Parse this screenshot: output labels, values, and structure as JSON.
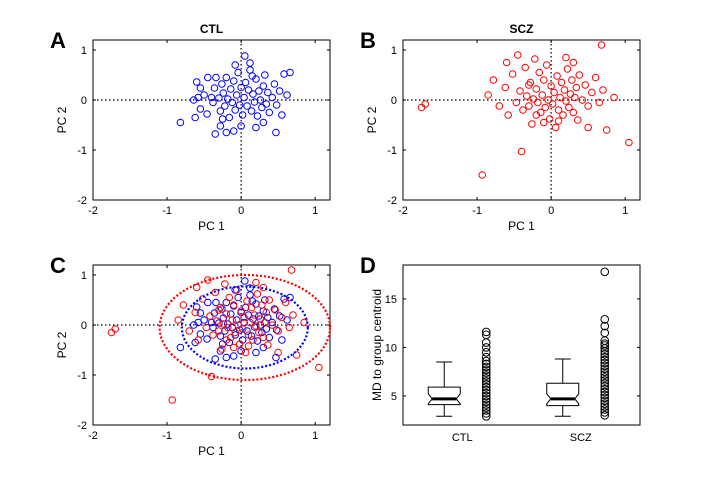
{
  "chart_data": [
    {
      "type": "scatter",
      "panel_letter": "A",
      "title": "CTL",
      "xlabel": "PC 1",
      "ylabel": "PC 2",
      "xlim": [
        -2,
        1.2
      ],
      "ylim": [
        -2,
        1.2
      ],
      "xticks": [
        "-2",
        "-1",
        "0",
        "1"
      ],
      "yticks": [
        "-2",
        "-1",
        "0",
        "1"
      ],
      "crosshair": "dotted lines at x=0 and y=0",
      "series": [
        {
          "color": "#0000ff",
          "marker": "open circle",
          "points": [
            [
              -0.82,
              -0.45
            ],
            [
              -0.62,
              -0.35
            ],
            [
              -0.55,
              -0.18
            ],
            [
              -0.5,
              0.1
            ],
            [
              -0.46,
              -0.28
            ],
            [
              -0.4,
              0.05
            ],
            [
              -0.38,
              -0.05
            ],
            [
              -0.36,
              0.24
            ],
            [
              -0.34,
              0.45
            ],
            [
              -0.3,
              0.04
            ],
            [
              -0.28,
              -0.22
            ],
            [
              -0.26,
              0.32
            ],
            [
              -0.24,
              0.14
            ],
            [
              -0.22,
              -0.12
            ],
            [
              -0.2,
              0.45
            ],
            [
              -0.18,
              0.02
            ],
            [
              -0.16,
              -0.35
            ],
            [
              -0.14,
              0.22
            ],
            [
              -0.12,
              -0.05
            ],
            [
              -0.1,
              0.38
            ],
            [
              -0.08,
              -0.2
            ],
            [
              -0.06,
              0.1
            ],
            [
              -0.04,
              0.55
            ],
            [
              -0.02,
              -0.1
            ],
            [
              0.0,
              0.25
            ],
            [
              0.02,
              -0.3
            ],
            [
              0.04,
              0.05
            ],
            [
              0.06,
              0.35
            ],
            [
              0.08,
              -0.12
            ],
            [
              0.1,
              0.2
            ],
            [
              0.12,
              0.6
            ],
            [
              0.14,
              -0.22
            ],
            [
              0.16,
              0.12
            ],
            [
              0.18,
              -0.04
            ],
            [
              0.2,
              0.42
            ],
            [
              0.22,
              -0.32
            ],
            [
              0.24,
              0.18
            ],
            [
              0.26,
              0.0
            ],
            [
              0.28,
              -0.15
            ],
            [
              0.3,
              0.28
            ],
            [
              0.32,
              0.5
            ],
            [
              0.34,
              -0.08
            ],
            [
              0.36,
              0.15
            ],
            [
              0.38,
              -0.25
            ],
            [
              0.42,
              0.05
            ],
            [
              0.45,
              0.32
            ],
            [
              0.48,
              -0.1
            ],
            [
              0.52,
              0.18
            ],
            [
              0.58,
              0.52
            ],
            [
              0.62,
              0.1
            ],
            [
              0.66,
              0.55
            ],
            [
              0.05,
              0.88
            ],
            [
              0.12,
              0.74
            ],
            [
              -0.08,
              0.7
            ],
            [
              -0.2,
              -0.65
            ],
            [
              0.0,
              -0.52
            ],
            [
              -0.1,
              -0.62
            ],
            [
              -0.35,
              -0.68
            ],
            [
              -0.28,
              -0.52
            ],
            [
              0.2,
              -0.55
            ],
            [
              0.3,
              -0.45
            ],
            [
              0.47,
              -0.65
            ],
            [
              0.55,
              -0.3
            ],
            [
              -0.58,
              0.05
            ],
            [
              -0.55,
              0.24
            ],
            [
              -0.64,
              0.0
            ],
            [
              -0.6,
              0.36
            ],
            [
              -0.45,
              0.45
            ],
            [
              -0.25,
              -0.38
            ],
            [
              0.15,
              0.48
            ]
          ]
        }
      ]
    },
    {
      "type": "scatter",
      "panel_letter": "B",
      "title": "SCZ",
      "xlabel": "PC 1",
      "ylabel": "PC 2",
      "xlim": [
        -2,
        1.2
      ],
      "ylim": [
        -2,
        1.2
      ],
      "xticks": [
        "-2",
        "-1",
        "0",
        "1"
      ],
      "yticks": [
        "-2",
        "-1",
        "0",
        "1"
      ],
      "crosshair": "dotted lines at x=0 and y=0",
      "series": [
        {
          "color": "#ff0000",
          "marker": "open circle",
          "points": [
            [
              -1.75,
              -0.15
            ],
            [
              -1.7,
              -0.08
            ],
            [
              -0.93,
              -1.5
            ],
            [
              -0.85,
              0.1
            ],
            [
              -0.78,
              0.4
            ],
            [
              -0.7,
              -0.12
            ],
            [
              -0.62,
              0.25
            ],
            [
              -0.58,
              -0.3
            ],
            [
              -0.52,
              0.52
            ],
            [
              -0.47,
              -0.05
            ],
            [
              -0.45,
              0.9
            ],
            [
              -0.42,
              0.18
            ],
            [
              -0.4,
              -1.03
            ],
            [
              -0.38,
              -0.2
            ],
            [
              -0.35,
              0.65
            ],
            [
              -0.33,
              0.08
            ],
            [
              -0.3,
              -0.12
            ],
            [
              -0.28,
              0.35
            ],
            [
              -0.26,
              -0.48
            ],
            [
              -0.24,
              0.02
            ],
            [
              -0.22,
              0.82
            ],
            [
              -0.2,
              0.22
            ],
            [
              -0.18,
              -0.05
            ],
            [
              -0.16,
              0.55
            ],
            [
              -0.14,
              -0.25
            ],
            [
              -0.12,
              0.1
            ],
            [
              -0.1,
              0.4
            ],
            [
              -0.08,
              -0.15
            ],
            [
              -0.06,
              0.7
            ],
            [
              -0.04,
              0.0
            ],
            [
              -0.02,
              -0.38
            ],
            [
              0.0,
              0.28
            ],
            [
              0.02,
              -0.08
            ],
            [
              0.04,
              0.15
            ],
            [
              0.06,
              -0.55
            ],
            [
              0.08,
              0.48
            ],
            [
              0.1,
              -0.2
            ],
            [
              0.12,
              0.05
            ],
            [
              0.14,
              0.35
            ],
            [
              0.16,
              -0.3
            ],
            [
              0.18,
              0.2
            ],
            [
              0.2,
              -0.02
            ],
            [
              0.22,
              0.62
            ],
            [
              0.24,
              -0.15
            ],
            [
              0.26,
              0.12
            ],
            [
              0.28,
              0.4
            ],
            [
              0.3,
              -0.25
            ],
            [
              0.32,
              0.05
            ],
            [
              0.34,
              0.25
            ],
            [
              0.36,
              -0.4
            ],
            [
              0.38,
              0.5
            ],
            [
              0.42,
              0.0
            ],
            [
              0.46,
              0.3
            ],
            [
              0.5,
              -0.12
            ],
            [
              0.55,
              0.15
            ],
            [
              0.6,
              0.45
            ],
            [
              0.65,
              -0.05
            ],
            [
              0.68,
              1.1
            ],
            [
              0.7,
              0.2
            ],
            [
              0.85,
              0.05
            ],
            [
              1.05,
              -0.85
            ],
            [
              0.75,
              -0.6
            ],
            [
              0.5,
              -0.55
            ],
            [
              -0.6,
              0.75
            ],
            [
              0.2,
              0.85
            ],
            [
              -0.1,
              -0.45
            ],
            [
              -0.2,
              -0.3
            ],
            [
              0.3,
              0.75
            ],
            [
              -0.3,
              0.3
            ],
            [
              0.1,
              -0.42
            ]
          ]
        }
      ]
    },
    {
      "type": "scatter",
      "panel_letter": "C",
      "title": "",
      "xlabel": "PC 1",
      "ylabel": "PC 2",
      "xlim": [
        -2,
        1.2
      ],
      "ylim": [
        -2,
        1.2
      ],
      "xticks": [
        "-2",
        "-1",
        "0",
        "1"
      ],
      "yticks": [
        "-2",
        "-1",
        "0",
        "1"
      ],
      "crosshair": "dotted lines at x=0 and y=0",
      "series": [
        {
          "color": "#0000ff",
          "marker": "open circle",
          "same_points_as_panel": "A"
        },
        {
          "color": "#ff0000",
          "marker": "open circle",
          "same_points_as_panel": "B"
        }
      ],
      "ellipses": [
        {
          "color": "#0000ff",
          "style": "dotted",
          "center": [
            0.05,
            -0.05
          ],
          "radii": [
            0.85,
            0.82
          ]
        },
        {
          "color": "#ff0000",
          "style": "dotted",
          "center": [
            0.05,
            -0.05
          ],
          "radii": [
            1.15,
            1.05
          ]
        }
      ]
    },
    {
      "type": "boxplot",
      "panel_letter": "D",
      "title": "",
      "xlabel": "",
      "ylabel": "MD to group centroid",
      "categories": [
        "CTL",
        "SCZ"
      ],
      "ylim": [
        2,
        18.5
      ],
      "yticks": [
        "5",
        "10",
        "15"
      ],
      "series": [
        {
          "name": "CTL",
          "whisker_low": 2.9,
          "q1": 4.1,
          "median": 4.7,
          "q3": 5.9,
          "whisker_high": 8.5,
          "outliers": [
            2.9,
            3.2,
            3.5,
            3.8,
            4.1,
            4.4,
            4.7,
            5.0,
            5.3,
            5.6,
            5.9,
            6.2,
            6.5,
            6.8,
            7.1,
            7.4,
            7.7,
            8.0,
            8.3,
            8.6,
            9.0,
            9.5,
            10.0,
            10.5,
            11.3,
            11.6
          ]
        },
        {
          "name": "SCZ",
          "whisker_low": 2.9,
          "q1": 4.0,
          "median": 4.7,
          "q3": 6.3,
          "whisker_high": 8.8,
          "outliers": [
            3.0,
            3.3,
            3.6,
            3.9,
            4.2,
            4.5,
            4.8,
            5.1,
            5.4,
            5.7,
            6.0,
            6.3,
            6.6,
            6.9,
            7.2,
            7.5,
            7.8,
            8.1,
            8.4,
            8.7,
            9.0,
            9.3,
            9.6,
            9.9,
            10.2,
            10.4,
            10.7,
            11.5,
            12.2,
            12.9,
            17.8
          ]
        }
      ]
    }
  ]
}
